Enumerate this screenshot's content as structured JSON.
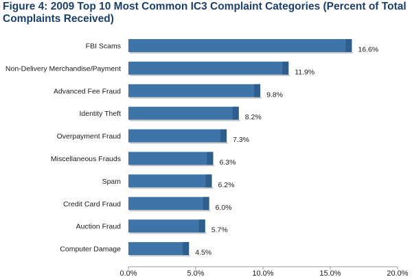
{
  "chart_data": {
    "type": "bar",
    "orientation": "horizontal",
    "title": "Figure 4: 2009 Top 10 Most Common IC3 Complaint Categories (Percent of Total Complaints Received)",
    "xlabel": "",
    "ylabel": "",
    "categories": [
      "FBI Scams",
      "Non-Delivery Merchandise/Payment",
      "Advanced Fee Fraud",
      "Identity Theft",
      "Overpayment Fraud",
      "Miscellaneous Frauds",
      "Spam",
      "Credit Card Fraud",
      "Auction Fraud",
      "Computer Damage"
    ],
    "values": [
      16.6,
      11.9,
      9.8,
      8.2,
      7.3,
      6.3,
      6.2,
      6.0,
      5.7,
      4.5
    ],
    "value_labels": [
      "16.6%",
      "11.9%",
      "9.8%",
      "8.2%",
      "7.3%",
      "6.3%",
      "6.2%",
      "6.0%",
      "5.7%",
      "4.5%"
    ],
    "xlim": [
      0,
      20
    ],
    "xticks": [
      0,
      5,
      10,
      15,
      20
    ],
    "xtick_labels": [
      "0.0%",
      "5.0%",
      "10.0%",
      "15.0%",
      "20.0%"
    ],
    "grid": false,
    "legend": "none",
    "colors": {
      "bar": "#3f74a8",
      "bar_end": "#2d5e8e",
      "title": "#1b3f6a",
      "axis": "#9a9a9a"
    }
  }
}
